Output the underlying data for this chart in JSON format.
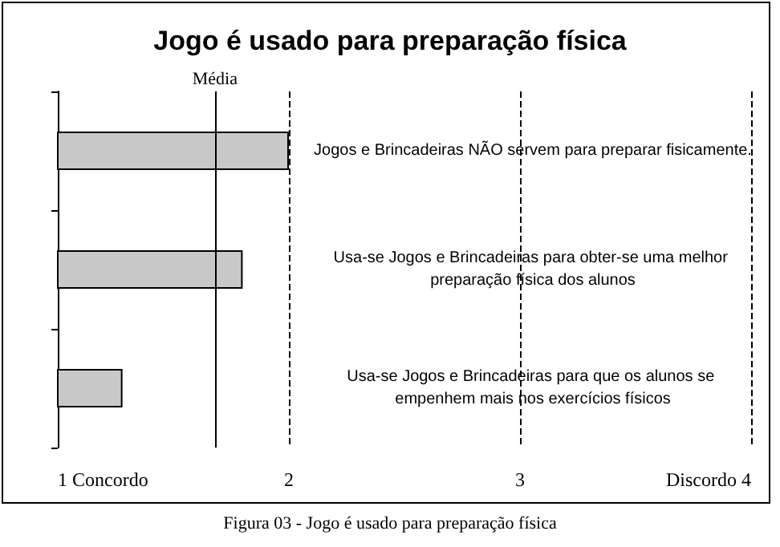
{
  "chart_data": {
    "type": "bar",
    "orientation": "horizontal",
    "title": "Jogo é usado para preparação física",
    "categories": [
      "Jogos e Brincadeiras NÃO servem para preparar fisicamente.",
      "Usa-se Jogos e Brincadeiras para obter-se uma melhor preparação física dos alunos",
      "Usa-se Jogos e Brincadeiras para que os alunos se empenhem mais nos exercícios físicos"
    ],
    "values": [
      2.0,
      1.8,
      1.28
    ],
    "color": "#c8c8c8",
    "xlim": [
      1,
      4
    ],
    "xticks": [
      {
        "value": 1,
        "label": "1 Concordo"
      },
      2,
      3,
      {
        "value": 4,
        "label": "Discordo 4"
      }
    ],
    "grid": "x",
    "ref_lines": [
      {
        "axis": "x",
        "value": 1.68,
        "label": "Média",
        "color": "#000000",
        "line_style": "solid"
      }
    ],
    "annotations": [
      "Figura 03 - Jogo é usado para preparação física"
    ]
  }
}
